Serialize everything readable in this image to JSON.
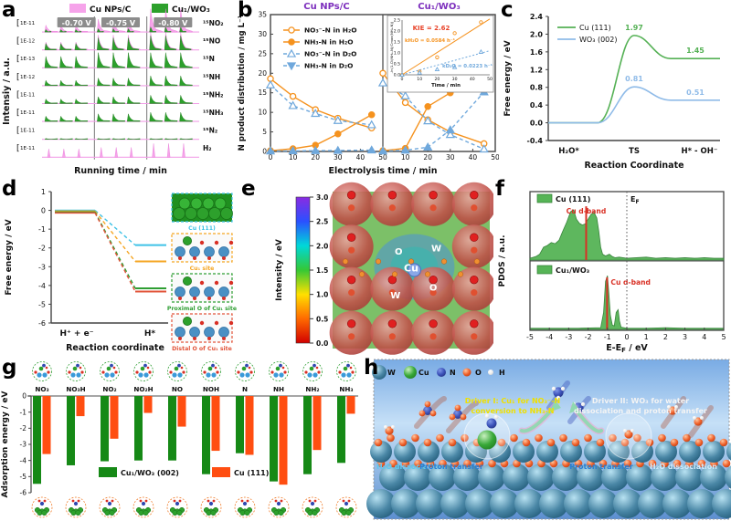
{
  "panels": {
    "a": {
      "label": "a"
    },
    "b": {
      "label": "b"
    },
    "c": {
      "label": "c"
    },
    "d": {
      "label": "d"
    },
    "e": {
      "label": "e"
    },
    "f": {
      "label": "f"
    },
    "g": {
      "label": "g"
    },
    "h": {
      "label": "h",
      "legend": [
        {
          "label": "W",
          "color": "#2e6f8e"
        },
        {
          "label": "Cu",
          "color": "#2da02c"
        },
        {
          "label": "N",
          "color": "#2838a8"
        },
        {
          "label": "O",
          "color": "#e8502a"
        },
        {
          "label": "H",
          "color": "#eeeeee"
        }
      ],
      "driver1_lines": [
        "Driver I: Cu₁ for NO₃⁻-N",
        "conversion to NH₃-N"
      ],
      "driver2_lines": [
        "Driver II: WO₃ for water",
        "dissociation and proton transfer"
      ],
      "annotations": [
        "H₂O dissociation",
        "Proton transfer",
        "Proton transfer",
        "H₂O dissociation"
      ],
      "driver1_color": "#f0e000",
      "driver2_color": "#f4f4f4"
    }
  },
  "chart_data": [
    {
      "panel": "a",
      "type": "area",
      "xlabel": "Running time / min",
      "ylabel": "Intensiy / a.u.",
      "legend": [
        {
          "label": "Cu NPs/C",
          "color": "#F6A3EA"
        },
        {
          "label": "Cu₁/WO₃",
          "color": "#2DA02C"
        }
      ],
      "voltages": [
        "-0.70 V",
        "-0.75 V",
        "-0.80 V"
      ],
      "rows": [
        {
          "scale": "1E-11",
          "species": "¹⁵NO₂",
          "series": "pink",
          "amps": [
            0.3,
            0.55,
            1.0
          ]
        },
        {
          "scale": "1E-12",
          "species": "¹⁵NO",
          "series": "both",
          "amps": [
            0.45,
            0.85,
            1.0
          ]
        },
        {
          "scale": "1E-13",
          "species": "¹⁵N",
          "series": "green",
          "amps": [
            0.75,
            1.0,
            1.0
          ]
        },
        {
          "scale": "1E-12",
          "species": "¹⁵NH",
          "series": "green",
          "amps": [
            0.35,
            0.5,
            0.65
          ]
        },
        {
          "scale": "1E-11",
          "species": "¹⁵NH₂",
          "series": "green",
          "amps": [
            0.3,
            0.45,
            0.55
          ]
        },
        {
          "scale": "1E-11",
          "species": "¹⁵NH₃",
          "series": "green",
          "amps": [
            0.35,
            0.5,
            0.6
          ]
        },
        {
          "scale": "1E-11",
          "species": "¹⁵N₂",
          "series": "flat",
          "amps": [
            0.06,
            0.06,
            0.06
          ]
        },
        {
          "scale": "1E-11",
          "species": "H₂",
          "series": "needle",
          "amps": [
            0.55,
            0.65,
            0.9
          ]
        }
      ]
    },
    {
      "panel": "b",
      "type": "scatter",
      "subpanel_titles": [
        "Cu NPs/C",
        "Cu₁/WO₃"
      ],
      "title_color": "#7D2FBD",
      "xlabel": "Electrolysis time / min",
      "ylabel": "N product distribution / mg L⁻¹",
      "xlim": [
        0,
        50
      ],
      "ylim": [
        0,
        35
      ],
      "yticks": [
        0,
        5,
        10,
        15,
        20,
        25,
        30,
        35
      ],
      "xticks": [
        0,
        10,
        20,
        30,
        40,
        50
      ],
      "x": [
        0,
        10,
        20,
        30,
        45
      ],
      "legend": [
        {
          "name": "NO₃⁻-N in H₂O",
          "marker": "open-circle",
          "color": "#F5921E",
          "line": "solid"
        },
        {
          "name": "NH₃-N in H₂O",
          "marker": "filled-circle",
          "color": "#F5921E",
          "line": "solid"
        },
        {
          "name": "NO₃⁻-N in D₂O",
          "marker": "open-triangle",
          "color": "#6FA8DC",
          "line": "dashed"
        },
        {
          "name": "NH₃-N in D₂O",
          "marker": "filled-triangle",
          "color": "#6FA8DC",
          "line": "dashed"
        }
      ],
      "series_left": [
        {
          "name": "NO₃⁻-N in H₂O",
          "values": [
            18.6,
            14.1,
            10.7,
            8.5,
            6.0
          ]
        },
        {
          "name": "NH₃-N in H₂O",
          "values": [
            0.2,
            0.7,
            1.6,
            4.5,
            9.4
          ]
        },
        {
          "name": "NO₃⁻-N in D₂O",
          "values": [
            17.0,
            11.7,
            9.7,
            7.9,
            6.8
          ]
        },
        {
          "name": "NH₃-N in D₂O",
          "values": [
            0.1,
            0.15,
            0.2,
            0.25,
            0.35
          ]
        }
      ],
      "series_right": [
        {
          "name": "NO₃⁻-N in H₂O",
          "values": [
            20.0,
            12.5,
            8.1,
            5.0,
            2.0
          ]
        },
        {
          "name": "NH₃-N in H₂O",
          "values": [
            0.2,
            0.8,
            11.5,
            15.0,
            18.2
          ]
        },
        {
          "name": "NO₃⁻-N in D₂O",
          "values": [
            17.5,
            14.2,
            7.8,
            4.3,
            0.6
          ]
        },
        {
          "name": "NH₃-N in D₂O",
          "values": [
            0.1,
            0.3,
            1.1,
            5.5,
            15.2
          ]
        }
      ]
    },
    {
      "panel": "b-inset",
      "type": "line",
      "xlabel": "Time / min",
      "ylabel": "-ln(1-Ct(NH₄-N)/Cmax(NH₄-N))",
      "xlim": [
        0,
        50
      ],
      "ylim": [
        0,
        2.5
      ],
      "xticks": [
        0,
        10,
        20,
        30,
        40,
        50
      ],
      "yticks": [
        0.0,
        0.5,
        1.0,
        1.5,
        2.0,
        2.5
      ],
      "annotations": [
        {
          "text": "KIE = 2.62",
          "color": "#E8442A"
        },
        {
          "text": "kH₂O = 0.0584 h⁻¹",
          "color": "#F5921E"
        },
        {
          "text": "kD₂O = 0.0223 h⁻¹",
          "color": "#6FA8DC"
        }
      ],
      "x": [
        0,
        10,
        20,
        30,
        45
      ],
      "series": [
        {
          "name": "H₂O",
          "color": "#F5921E",
          "values": [
            0,
            0.15,
            0.8,
            1.9,
            2.4
          ]
        },
        {
          "name": "D₂O",
          "color": "#6FA8DC",
          "values": [
            0,
            0.1,
            0.25,
            0.35,
            1.05
          ]
        }
      ]
    },
    {
      "panel": "c",
      "type": "line",
      "xlabel": "Reaction Coordinate",
      "ylabel": "Free energy / eV",
      "categories": [
        "H₂O*",
        "TS",
        "H* - OH⁻"
      ],
      "ylim": [
        -0.4,
        2.4
      ],
      "yticks": [
        -0.4,
        0.0,
        0.4,
        0.8,
        1.2,
        1.6,
        2.0,
        2.4
      ],
      "series": [
        {
          "name": "Cu (111)",
          "color": "#55B155",
          "start": 0.0,
          "peak": 1.97,
          "end": 1.45
        },
        {
          "name": "WO₃ (002)",
          "color": "#8FBBE8",
          "start": 0.0,
          "peak": 0.81,
          "end": 0.51
        }
      ]
    },
    {
      "panel": "d",
      "type": "line",
      "xlabel": "Reaction coordinate",
      "ylabel": "Free energy / eV",
      "categories": [
        "H⁺ + e⁻",
        "H*"
      ],
      "ylim": [
        -6,
        1
      ],
      "yticks": [
        1,
        0,
        -1,
        -2,
        -3,
        -4,
        -5,
        -6
      ],
      "series": [
        {
          "name": "Cu (111)",
          "color": "#3FC2E6",
          "value": -1.85
        },
        {
          "name": "Cu₁ site",
          "color": "#F5A623",
          "value": -2.72
        },
        {
          "name": "Proximal O of Cu₁ site",
          "color": "#2F9E33",
          "value": -4.15
        },
        {
          "name": "Distal O of Cu₁ site",
          "color": "#E2543A",
          "value": -4.32
        }
      ]
    },
    {
      "panel": "e",
      "type": "heatmap",
      "colorbar_label": "Intensity / eV",
      "colorbar_ticks": [
        "3.0",
        "2.5",
        "2.0",
        "1.5",
        "1.0",
        "0.5",
        "0.0"
      ],
      "colorbar_colors": [
        "#8a2be2",
        "#2a50ff",
        "#00d8d8",
        "#35c835",
        "#ffe000",
        "#ff6a00",
        "#d10000"
      ],
      "atom_labels": [
        {
          "text": "O",
          "x": 0.42,
          "y": 0.4
        },
        {
          "text": "W",
          "x": 0.66,
          "y": 0.38
        },
        {
          "text": "Cu",
          "x": 0.5,
          "y": 0.51
        },
        {
          "text": "W",
          "x": 0.4,
          "y": 0.68
        },
        {
          "text": "O",
          "x": 0.64,
          "y": 0.63
        }
      ]
    },
    {
      "panel": "f",
      "type": "area",
      "xlabel_parts": [
        "E-E",
        "F",
        " / eV"
      ],
      "ylabel": "PDOS / a.u.",
      "fermi_parts": [
        "E",
        "F"
      ],
      "xlim": [
        -5,
        5
      ],
      "xticks": [
        -5,
        -4,
        -3,
        -2,
        -1,
        0,
        1,
        2,
        3,
        4,
        5
      ],
      "fill_color": "#56B456",
      "line_color": "#2E7D32",
      "dband_color": "#D93025",
      "subpanels": [
        {
          "name": "Cu (111)",
          "dband_label": "Cu d-band",
          "dband_x": -2.1,
          "curve": [
            [
              -5,
              0.03
            ],
            [
              -4.7,
              0.06
            ],
            [
              -4.5,
              0.1
            ],
            [
              -4.3,
              0.22
            ],
            [
              -4.1,
              0.25
            ],
            [
              -3.9,
              0.3
            ],
            [
              -3.7,
              0.28
            ],
            [
              -3.5,
              0.34
            ],
            [
              -3.3,
              0.5
            ],
            [
              -3.1,
              0.65
            ],
            [
              -2.9,
              0.83
            ],
            [
              -2.75,
              0.86
            ],
            [
              -2.6,
              0.7
            ],
            [
              -2.45,
              0.63
            ],
            [
              -2.3,
              0.6
            ],
            [
              -2.15,
              0.62
            ],
            [
              -2.0,
              0.7
            ],
            [
              -1.85,
              0.78
            ],
            [
              -1.7,
              0.82
            ],
            [
              -1.55,
              0.72
            ],
            [
              -1.45,
              0.5
            ],
            [
              -1.35,
              0.22
            ],
            [
              -1.25,
              0.1
            ],
            [
              -1.1,
              0.07
            ],
            [
              -0.9,
              0.1
            ],
            [
              -0.75,
              0.06
            ],
            [
              -0.6,
              0.04
            ],
            [
              -0.4,
              0.05
            ],
            [
              -0.2,
              0.04
            ],
            [
              0,
              0.03
            ],
            [
              0.5,
              0.04
            ],
            [
              1,
              0.05
            ],
            [
              1.5,
              0.03
            ],
            [
              2,
              0.04
            ],
            [
              2.5,
              0.03
            ],
            [
              3,
              0.04
            ],
            [
              3.5,
              0.03
            ],
            [
              4,
              0.04
            ],
            [
              4.5,
              0.03
            ],
            [
              5,
              0.03
            ]
          ]
        },
        {
          "name": "Cu₁/WO₃",
          "dband_label": "Cu d-band",
          "dband_x": -1.02,
          "curve": [
            [
              -5,
              0.02
            ],
            [
              -2.5,
              0.02
            ],
            [
              -1.35,
              0.03
            ],
            [
              -1.2,
              0.3
            ],
            [
              -1.1,
              0.85
            ],
            [
              -1.0,
              0.95
            ],
            [
              -0.92,
              0.6
            ],
            [
              -0.85,
              0.25
            ],
            [
              -0.75,
              0.08
            ],
            [
              -0.65,
              0.06
            ],
            [
              -0.55,
              0.3
            ],
            [
              -0.45,
              0.35
            ],
            [
              -0.38,
              0.15
            ],
            [
              -0.3,
              0.04
            ],
            [
              0,
              0.02
            ],
            [
              1,
              0.02
            ],
            [
              2,
              0.03
            ],
            [
              3,
              0.02
            ],
            [
              4,
              0.02
            ],
            [
              5,
              0.02
            ]
          ]
        }
      ]
    },
    {
      "panel": "g",
      "type": "bar",
      "ylabel": "Adsorption energy / eV",
      "categories": [
        "NO₃",
        "NO₃H",
        "NO₂",
        "NO₂H",
        "NO",
        "NOH",
        "N",
        "NH",
        "NH₂",
        "NH₃"
      ],
      "ylim": [
        -6,
        0
      ],
      "yticks": [
        0,
        -1,
        -2,
        -3,
        -4,
        -5,
        -6
      ],
      "series": [
        {
          "name": "Cu₁/WO₃ (002)",
          "color": "#168916",
          "values": [
            -5.45,
            -4.3,
            -4.05,
            -4.0,
            -4.0,
            -4.85,
            -3.55,
            -5.3,
            -4.85,
            -4.15
          ]
        },
        {
          "name": "Cu (111)",
          "color": "#FF4E11",
          "values": [
            -3.6,
            -1.25,
            -2.65,
            -1.05,
            -1.9,
            -3.4,
            -3.65,
            -5.5,
            -3.35,
            -1.1
          ]
        }
      ]
    }
  ]
}
